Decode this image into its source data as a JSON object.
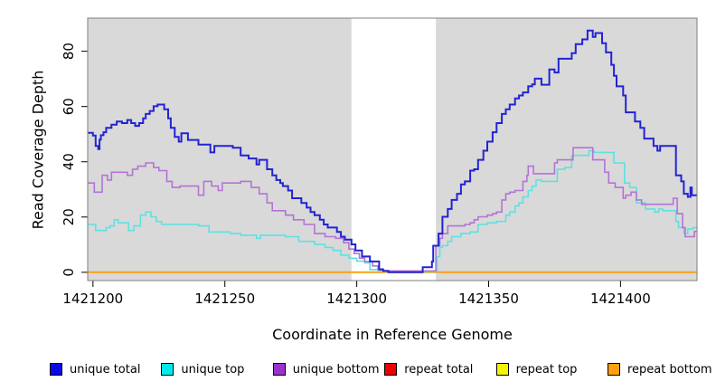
{
  "chart_data": {
    "type": "line",
    "step": true,
    "title": "",
    "xlabel": "Coordinate in Reference Genome",
    "ylabel": "Read Coverage Depth",
    "xlim": [
      1421198,
      1421429
    ],
    "ylim": [
      -3,
      92
    ],
    "x_ticks": [
      1421200,
      1421250,
      1421300,
      1421350,
      1421400
    ],
    "y_ticks": [
      0,
      20,
      40,
      60,
      80
    ],
    "grid": false,
    "plot_bg": "#d9d9d9",
    "box_color": "#7f7f7f",
    "highlight_band": {
      "x0": 1421298,
      "x1": 1421330,
      "color": "#ffffff"
    },
    "legend_position": "bottom",
    "draw_order": [
      3,
      4,
      5,
      1,
      2,
      0
    ],
    "series": [
      {
        "name": "unique total",
        "color": "#2323d3",
        "legend_fill": "#0a0ae6",
        "width": 2,
        "points": [
          [
            1421198,
            50.5
          ],
          [
            1421200,
            49.5
          ],
          [
            1421201,
            45.7
          ],
          [
            1421202,
            44.6
          ],
          [
            1421202.5,
            48
          ],
          [
            1421203,
            49.6
          ],
          [
            1421204,
            50.7
          ],
          [
            1421205,
            52.3
          ],
          [
            1421207,
            53.4
          ],
          [
            1421209,
            54.6
          ],
          [
            1421211,
            54
          ],
          [
            1421213,
            55.1
          ],
          [
            1421214.5,
            54
          ],
          [
            1421216,
            53
          ],
          [
            1421217.5,
            54
          ],
          [
            1421219,
            55.7
          ],
          [
            1421220,
            57.3
          ],
          [
            1421221.5,
            58.4
          ],
          [
            1421223,
            60.1
          ],
          [
            1421224.5,
            60.7
          ],
          [
            1421227,
            59
          ],
          [
            1421228.5,
            55.7
          ],
          [
            1421229.5,
            52.3
          ],
          [
            1421231,
            49
          ],
          [
            1421232.5,
            47.3
          ],
          [
            1421233.5,
            50.3
          ],
          [
            1421236,
            47.9
          ],
          [
            1421240,
            46.2
          ],
          [
            1421244.5,
            43.4
          ],
          [
            1421246,
            45.7
          ],
          [
            1421253,
            45.1
          ],
          [
            1421256,
            42.3
          ],
          [
            1421259,
            41.2
          ],
          [
            1421262,
            39
          ],
          [
            1421263,
            40.7
          ],
          [
            1421266,
            37.3
          ],
          [
            1421268,
            35.1
          ],
          [
            1421269.5,
            33.4
          ],
          [
            1421271,
            32.3
          ],
          [
            1421272,
            31.2
          ],
          [
            1421274,
            29.6
          ],
          [
            1421275.5,
            26.8
          ],
          [
            1421279,
            25.1
          ],
          [
            1421281,
            23.4
          ],
          [
            1421282.5,
            21.8
          ],
          [
            1421284,
            20.7
          ],
          [
            1421286,
            19
          ],
          [
            1421287.5,
            17.3
          ],
          [
            1421289,
            16.2
          ],
          [
            1421292.5,
            14.6
          ],
          [
            1421294,
            12.9
          ],
          [
            1421295.5,
            11.8
          ],
          [
            1421298,
            10.1
          ],
          [
            1421299.5,
            7.9
          ],
          [
            1421302,
            5.7
          ],
          [
            1421305,
            3.9
          ],
          [
            1421308.5,
            1
          ],
          [
            1421310,
            0.5
          ],
          [
            1421312,
            0
          ],
          [
            1421325,
            1.8
          ],
          [
            1421328.5,
            3.9
          ],
          [
            1421329,
            9.6
          ],
          [
            1421331,
            14
          ],
          [
            1421332.5,
            20.1
          ],
          [
            1421334.5,
            22.9
          ],
          [
            1421336,
            26.2
          ],
          [
            1421338,
            28.4
          ],
          [
            1421339.5,
            31.8
          ],
          [
            1421341,
            32.9
          ],
          [
            1421343,
            36.8
          ],
          [
            1421344.5,
            37.3
          ],
          [
            1421346,
            40.7
          ],
          [
            1421348,
            44
          ],
          [
            1421349.5,
            47.3
          ],
          [
            1421351.5,
            50.7
          ],
          [
            1421353,
            54
          ],
          [
            1421355,
            57.3
          ],
          [
            1421356.5,
            59
          ],
          [
            1421358,
            60.7
          ],
          [
            1421360,
            62.9
          ],
          [
            1421361.5,
            64
          ],
          [
            1421363,
            65.1
          ],
          [
            1421365,
            67.3
          ],
          [
            1421366.5,
            68
          ],
          [
            1421367.5,
            70.1
          ],
          [
            1421370,
            67.9
          ],
          [
            1421373,
            73.4
          ],
          [
            1421375,
            72.3
          ],
          [
            1421376.5,
            77.3
          ],
          [
            1421381.5,
            79.3
          ],
          [
            1421383,
            82.6
          ],
          [
            1421385.5,
            84.3
          ],
          [
            1421387.5,
            87.5
          ],
          [
            1421389.5,
            85.2
          ],
          [
            1421390.5,
            86.6
          ],
          [
            1421393,
            82.9
          ],
          [
            1421394.5,
            79.6
          ],
          [
            1421396.5,
            75.1
          ],
          [
            1421397.5,
            71.1
          ],
          [
            1421398.5,
            67.3
          ],
          [
            1421401,
            64
          ],
          [
            1421402,
            57.9
          ],
          [
            1421405.5,
            54.6
          ],
          [
            1421407.5,
            52.3
          ],
          [
            1421409,
            48.4
          ],
          [
            1421412.5,
            45.7
          ],
          [
            1421414,
            44
          ],
          [
            1421415,
            45.7
          ],
          [
            1421421,
            35.1
          ],
          [
            1421423,
            32.9
          ],
          [
            1421424,
            28.4
          ],
          [
            1421425.5,
            27.3
          ],
          [
            1421426.5,
            30.7
          ],
          [
            1421427,
            27.9
          ],
          [
            1421429,
            27.9
          ]
        ]
      },
      {
        "name": "unique top",
        "color": "#5ee1e1",
        "legend_fill": "#00eaea",
        "width": 1.6,
        "points": [
          [
            1421198,
            17.3
          ],
          [
            1421201,
            15.1
          ],
          [
            1421205,
            16.2
          ],
          [
            1421206.5,
            16.8
          ],
          [
            1421208,
            19
          ],
          [
            1421209.5,
            17.9
          ],
          [
            1421213.5,
            15.1
          ],
          [
            1421215.5,
            16.8
          ],
          [
            1421218,
            20.7
          ],
          [
            1421220,
            21.8
          ],
          [
            1421222,
            20.1
          ],
          [
            1421224,
            18.4
          ],
          [
            1421226,
            17.3
          ],
          [
            1421240,
            16.8
          ],
          [
            1421244,
            14.6
          ],
          [
            1421252,
            14
          ],
          [
            1421256,
            13.4
          ],
          [
            1421262,
            12.3
          ],
          [
            1421263.5,
            13.4
          ],
          [
            1421273,
            12.9
          ],
          [
            1421278,
            11.2
          ],
          [
            1421284,
            10.1
          ],
          [
            1421288,
            9
          ],
          [
            1421291,
            7.9
          ],
          [
            1421294,
            6.2
          ],
          [
            1421297,
            5.1
          ],
          [
            1421300,
            4
          ],
          [
            1421303,
            3.4
          ],
          [
            1421305,
            1
          ],
          [
            1421308,
            0.7
          ],
          [
            1421310,
            0.3
          ],
          [
            1421328,
            0.3
          ],
          [
            1421330.5,
            5.7
          ],
          [
            1421331.5,
            9
          ],
          [
            1421332.5,
            9.6
          ],
          [
            1421334.5,
            11.2
          ],
          [
            1421336,
            12.9
          ],
          [
            1421339.5,
            14
          ],
          [
            1421343,
            14.6
          ],
          [
            1421346,
            17.3
          ],
          [
            1421349.5,
            17.9
          ],
          [
            1421353,
            18.4
          ],
          [
            1421356.5,
            20.7
          ],
          [
            1421358,
            21.8
          ],
          [
            1421360,
            24
          ],
          [
            1421361.5,
            25.1
          ],
          [
            1421363,
            27.3
          ],
          [
            1421365,
            29.6
          ],
          [
            1421366.5,
            31.2
          ],
          [
            1421368,
            33.4
          ],
          [
            1421370,
            32.9
          ],
          [
            1421376,
            37.3
          ],
          [
            1421379,
            37.9
          ],
          [
            1421381.5,
            42.3
          ],
          [
            1421388,
            44
          ],
          [
            1421390,
            43.4
          ],
          [
            1421397.5,
            39.6
          ],
          [
            1421401.5,
            32.3
          ],
          [
            1421403.5,
            30.7
          ],
          [
            1421406,
            25.1
          ],
          [
            1421409.5,
            22.9
          ],
          [
            1421413,
            21.8
          ],
          [
            1421414.5,
            22.9
          ],
          [
            1421416,
            22.3
          ],
          [
            1421421,
            18.4
          ],
          [
            1421422,
            16.2
          ],
          [
            1421424,
            14
          ],
          [
            1421425.5,
            15.7
          ],
          [
            1421427.5,
            16.2
          ],
          [
            1421429,
            16.2
          ]
        ]
      },
      {
        "name": "unique bottom",
        "color": "#b473d6",
        "legend_fill": "#9933cc",
        "width": 1.6,
        "points": [
          [
            1421198,
            32.3
          ],
          [
            1421200.5,
            29
          ],
          [
            1421203.5,
            35.1
          ],
          [
            1421205.5,
            33.4
          ],
          [
            1421207,
            36.2
          ],
          [
            1421213,
            35.1
          ],
          [
            1421215,
            37.3
          ],
          [
            1421217,
            38.4
          ],
          [
            1421220,
            39.6
          ],
          [
            1421223,
            37.9
          ],
          [
            1421225,
            36.8
          ],
          [
            1421228,
            32.9
          ],
          [
            1421230,
            30.7
          ],
          [
            1421233,
            31.2
          ],
          [
            1421240,
            27.9
          ],
          [
            1421242,
            32.9
          ],
          [
            1421245,
            31.2
          ],
          [
            1421247.5,
            29.6
          ],
          [
            1421249,
            32.3
          ],
          [
            1421256,
            32.9
          ],
          [
            1421260,
            30.7
          ],
          [
            1421263,
            28.4
          ],
          [
            1421266,
            25.1
          ],
          [
            1421268,
            22.3
          ],
          [
            1421273,
            20.7
          ],
          [
            1421276,
            19
          ],
          [
            1421280,
            17.3
          ],
          [
            1421284,
            14
          ],
          [
            1421288,
            12.9
          ],
          [
            1421292,
            12.3
          ],
          [
            1421295,
            10.7
          ],
          [
            1421297,
            8.4
          ],
          [
            1421299,
            6.8
          ],
          [
            1421301,
            5.1
          ],
          [
            1421303,
            3.9
          ],
          [
            1421306,
            2.3
          ],
          [
            1421308,
            1.2
          ],
          [
            1421310,
            0.5
          ],
          [
            1421330,
            9.6
          ],
          [
            1421331.5,
            12.3
          ],
          [
            1421332.5,
            14
          ],
          [
            1421334.5,
            16.8
          ],
          [
            1421341,
            17.3
          ],
          [
            1421343,
            17.9
          ],
          [
            1421344.5,
            19
          ],
          [
            1421346,
            20.1
          ],
          [
            1421349.5,
            20.7
          ],
          [
            1421351.5,
            21.2
          ],
          [
            1421353,
            21.8
          ],
          [
            1421355,
            26.2
          ],
          [
            1421356.5,
            28.4
          ],
          [
            1421358,
            29
          ],
          [
            1421360,
            29.6
          ],
          [
            1421363,
            32.9
          ],
          [
            1421364.5,
            35.1
          ],
          [
            1421365,
            38.4
          ],
          [
            1421367,
            35.7
          ],
          [
            1421375,
            39.6
          ],
          [
            1421376,
            40.7
          ],
          [
            1421382,
            45.1
          ],
          [
            1421389.5,
            40.7
          ],
          [
            1421394,
            36.2
          ],
          [
            1421395.5,
            32.3
          ],
          [
            1421398,
            30.7
          ],
          [
            1421401,
            26.8
          ],
          [
            1421402,
            27.9
          ],
          [
            1421404,
            29
          ],
          [
            1421406,
            26.2
          ],
          [
            1421408,
            24.6
          ],
          [
            1421420,
            26.8
          ],
          [
            1421421.5,
            21.2
          ],
          [
            1421423.5,
            16.2
          ],
          [
            1421424.5,
            12.9
          ],
          [
            1421428,
            14.8
          ],
          [
            1421429,
            14.8
          ]
        ]
      },
      {
        "name": "repeat total",
        "color": "#dd0000",
        "legend_fill": "#ee0000",
        "width": 1.4,
        "points": [
          [
            1421198,
            0
          ],
          [
            1421429,
            0
          ]
        ]
      },
      {
        "name": "repeat top",
        "color": "#eeee00",
        "legend_fill": "#f5f500",
        "width": 1.4,
        "points": [
          [
            1421198,
            0
          ],
          [
            1421429,
            0
          ]
        ]
      },
      {
        "name": "repeat bottom",
        "color": "#ffa010",
        "legend_fill": "#ffa010",
        "width": 2,
        "points": [
          [
            1421198,
            0
          ],
          [
            1421429,
            0
          ]
        ]
      }
    ]
  }
}
